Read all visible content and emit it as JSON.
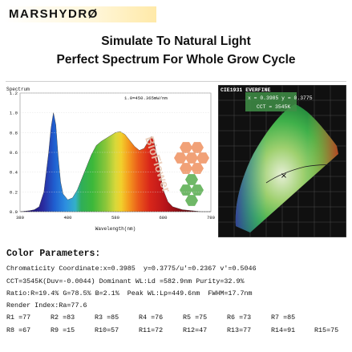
{
  "brand": {
    "name": "MARSHYDRØ"
  },
  "headline": {
    "line1": "Simulate To Natural Light",
    "line2": "Perfect Spectrum For Whole Grow Cycle"
  },
  "watermark": "BioFlower",
  "chart_data": [
    {
      "type": "area",
      "ylabel": "Spectrum",
      "xlabel": "Wavelength(nm)",
      "annotation": "1.0=450.365mW/nm",
      "xlim": [
        380,
        780
      ],
      "ylim": [
        0,
        1.2
      ],
      "xticks": [
        "380",
        "480",
        "580",
        "680",
        "780"
      ],
      "yticks": [
        "0.0",
        "0.2",
        "0.4",
        "0.6",
        "0.8",
        "1.0",
        "1.2"
      ],
      "x": [
        380,
        400,
        410,
        420,
        430,
        440,
        445,
        450,
        455,
        460,
        465,
        470,
        480,
        490,
        500,
        510,
        520,
        530,
        540,
        550,
        560,
        570,
        580,
        590,
        600,
        610,
        620,
        630,
        640,
        650,
        655,
        660,
        670,
        680,
        690,
        700,
        720,
        740,
        760,
        780
      ],
      "y": [
        0.0,
        0.01,
        0.02,
        0.05,
        0.2,
        0.6,
        0.85,
        1.0,
        0.88,
        0.55,
        0.3,
        0.18,
        0.12,
        0.14,
        0.22,
        0.34,
        0.46,
        0.58,
        0.67,
        0.71,
        0.74,
        0.77,
        0.8,
        0.81,
        0.78,
        0.72,
        0.66,
        0.62,
        0.64,
        0.72,
        0.76,
        0.72,
        0.5,
        0.22,
        0.1,
        0.05,
        0.02,
        0.01,
        0.0,
        0.0
      ]
    },
    {
      "type": "scatter",
      "title": "CIE1931 EVERFINE",
      "coordinate_label": "x = 0.3985  y = 0.3775",
      "cct_label": "CCT = 3545K",
      "point": {
        "x": 0.3985,
        "y": 0.3775
      }
    }
  ],
  "parameters": {
    "title": "Color Parameters:",
    "lines": [
      "Chromaticity Coordinate:x=0.3985  y=0.3775/u'=0.2367 v'=0.5046",
      "CCT=3545K(Duv=-0.0044) Dominant WL:Ld =582.9nm Purity=32.9%",
      "Ratio:R=19.4% G=78.5% B=2.1%  Peak WL:Lp=449.6nm  FWHM=17.7nm",
      "Render Index:Ra=77.6"
    ],
    "render_row1": [
      "R1 =77",
      "R2 =83",
      "R3 =85",
      "R4 =76",
      "R5 =75",
      "R6 =73",
      "R7 =85"
    ],
    "render_row2": [
      "R8 =67",
      "R9 =15",
      "R10=57",
      "R11=72",
      "R12=47",
      "R13=77",
      "R14=91",
      "R15=75"
    ]
  },
  "colors": {
    "hexagon_orange": "#f1a177",
    "hexagon_green": "#6fb867",
    "chart_bg_dark": "#101010"
  }
}
